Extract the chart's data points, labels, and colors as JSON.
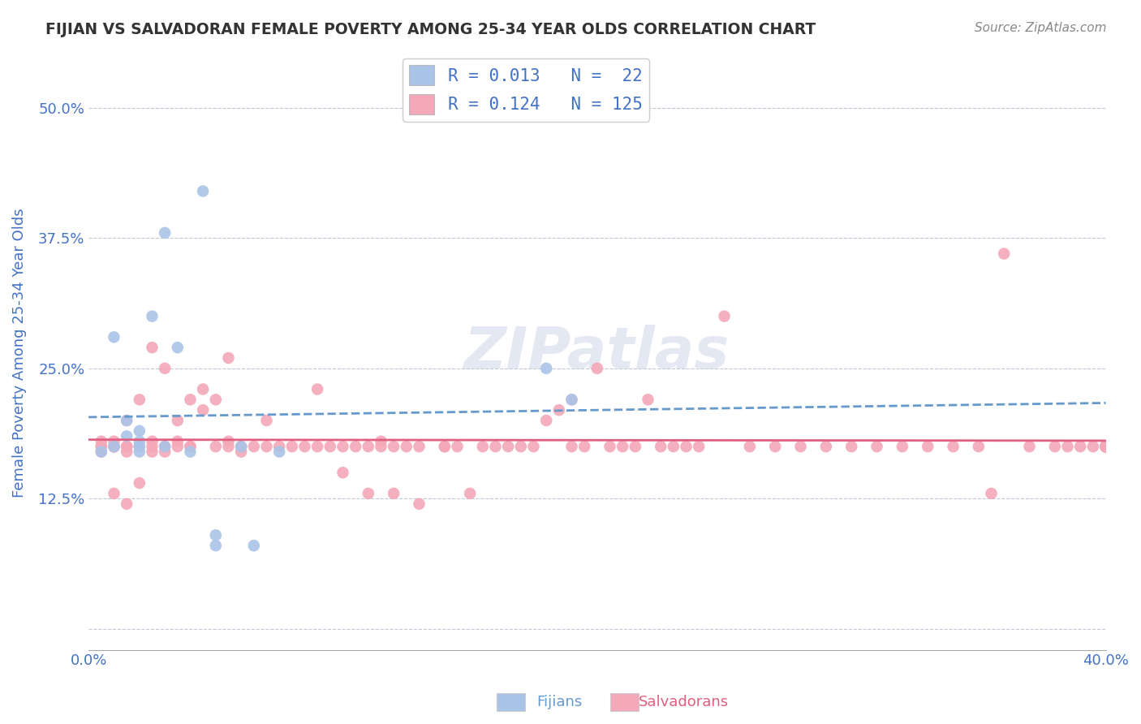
{
  "title": "FIJIAN VS SALVADORAN FEMALE POVERTY AMONG 25-34 YEAR OLDS CORRELATION CHART",
  "source": "Source: ZipAtlas.com",
  "ylabel": "Female Poverty Among 25-34 Year Olds",
  "xlim": [
    0.0,
    0.4
  ],
  "ylim": [
    -0.02,
    0.55
  ],
  "ytick_positions": [
    0.0,
    0.125,
    0.25,
    0.375,
    0.5
  ],
  "yticklabels": [
    "",
    "12.5%",
    "25.0%",
    "37.5%",
    "50.0%"
  ],
  "grid_color": "#c0c8d8",
  "background_color": "#ffffff",
  "fijian_color": "#aac4e8",
  "salvadoran_color": "#f4a8b8",
  "fijian_line_color": "#6699cc",
  "salvadoran_line_color": "#e06080",
  "R_fijian": 0.013,
  "N_fijian": 22,
  "R_salvadoran": 0.124,
  "N_salvadoran": 125,
  "title_color": "#333333",
  "axis_label_color": "#4472c4",
  "tick_label_color": "#4472c4",
  "fijian_x": [
    0.005,
    0.01,
    0.01,
    0.015,
    0.015,
    0.02,
    0.02,
    0.02,
    0.02,
    0.025,
    0.03,
    0.03,
    0.035,
    0.04,
    0.045,
    0.05,
    0.05,
    0.06,
    0.065,
    0.075,
    0.18,
    0.19
  ],
  "fijian_y": [
    0.17,
    0.28,
    0.175,
    0.185,
    0.2,
    0.17,
    0.175,
    0.18,
    0.19,
    0.3,
    0.175,
    0.38,
    0.27,
    0.17,
    0.42,
    0.08,
    0.09,
    0.175,
    0.08,
    0.17,
    0.25,
    0.22
  ],
  "salvadoran_x": [
    0.005,
    0.005,
    0.005,
    0.005,
    0.01,
    0.01,
    0.01,
    0.01,
    0.01,
    0.01,
    0.015,
    0.015,
    0.015,
    0.015,
    0.015,
    0.02,
    0.02,
    0.02,
    0.02,
    0.025,
    0.025,
    0.025,
    0.025,
    0.03,
    0.03,
    0.03,
    0.035,
    0.035,
    0.035,
    0.04,
    0.04,
    0.04,
    0.045,
    0.045,
    0.05,
    0.05,
    0.055,
    0.055,
    0.055,
    0.06,
    0.06,
    0.065,
    0.07,
    0.07,
    0.075,
    0.08,
    0.085,
    0.09,
    0.09,
    0.095,
    0.1,
    0.1,
    0.105,
    0.11,
    0.11,
    0.115,
    0.115,
    0.12,
    0.12,
    0.125,
    0.13,
    0.13,
    0.14,
    0.14,
    0.145,
    0.15,
    0.155,
    0.16,
    0.165,
    0.17,
    0.175,
    0.18,
    0.185,
    0.19,
    0.19,
    0.195,
    0.2,
    0.205,
    0.21,
    0.215,
    0.22,
    0.225,
    0.23,
    0.235,
    0.24,
    0.25,
    0.26,
    0.27,
    0.28,
    0.29,
    0.3,
    0.31,
    0.32,
    0.33,
    0.34,
    0.35,
    0.355,
    0.36,
    0.37,
    0.38,
    0.385,
    0.39,
    0.395,
    0.4,
    0.4,
    0.4,
    0.4,
    0.4,
    0.4,
    0.4,
    0.4,
    0.4,
    0.4,
    0.4,
    0.4,
    0.4,
    0.4,
    0.4,
    0.4,
    0.4,
    0.4,
    0.4,
    0.4,
    0.4,
    0.4,
    0.4
  ],
  "salvadoran_y": [
    0.17,
    0.175,
    0.18,
    0.175,
    0.175,
    0.175,
    0.18,
    0.175,
    0.175,
    0.13,
    0.175,
    0.12,
    0.17,
    0.175,
    0.2,
    0.14,
    0.175,
    0.175,
    0.22,
    0.175,
    0.17,
    0.18,
    0.27,
    0.17,
    0.175,
    0.25,
    0.175,
    0.18,
    0.2,
    0.175,
    0.175,
    0.22,
    0.21,
    0.23,
    0.175,
    0.22,
    0.175,
    0.18,
    0.26,
    0.17,
    0.175,
    0.175,
    0.175,
    0.2,
    0.175,
    0.175,
    0.175,
    0.175,
    0.23,
    0.175,
    0.15,
    0.175,
    0.175,
    0.175,
    0.13,
    0.175,
    0.18,
    0.175,
    0.13,
    0.175,
    0.12,
    0.175,
    0.175,
    0.175,
    0.175,
    0.13,
    0.175,
    0.175,
    0.175,
    0.175,
    0.175,
    0.2,
    0.21,
    0.175,
    0.22,
    0.175,
    0.25,
    0.175,
    0.175,
    0.175,
    0.22,
    0.175,
    0.175,
    0.175,
    0.175,
    0.3,
    0.175,
    0.175,
    0.175,
    0.175,
    0.175,
    0.175,
    0.175,
    0.175,
    0.175,
    0.175,
    0.13,
    0.36,
    0.175,
    0.175,
    0.175,
    0.175,
    0.175,
    0.175,
    0.175,
    0.175,
    0.175,
    0.175,
    0.175,
    0.175,
    0.175,
    0.175,
    0.175,
    0.175,
    0.175,
    0.175,
    0.175,
    0.175,
    0.175,
    0.175,
    0.175,
    0.175
  ]
}
